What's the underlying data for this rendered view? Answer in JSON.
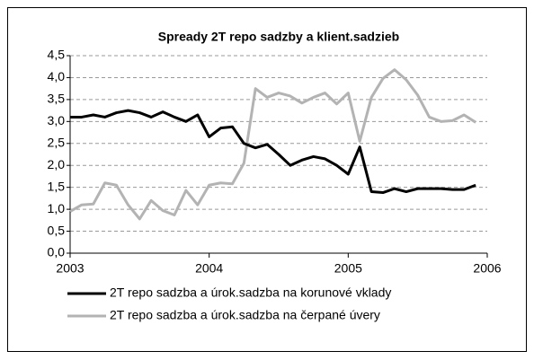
{
  "chart_data": {
    "type": "line",
    "title": "Spready 2T repo sadzby a klient.sadzieb",
    "x": [
      2003,
      2003.083,
      2003.167,
      2003.25,
      2003.333,
      2003.417,
      2003.5,
      2003.583,
      2003.667,
      2003.75,
      2003.833,
      2003.917,
      2004,
      2004.083,
      2004.167,
      2004.25,
      2004.333,
      2004.417,
      2004.5,
      2004.583,
      2004.667,
      2004.75,
      2004.833,
      2004.917,
      2005,
      2005.083,
      2005.167,
      2005.25,
      2005.333,
      2005.417,
      2005.5,
      2005.583,
      2005.667,
      2005.75,
      2005.833,
      2005.917
    ],
    "series": [
      {
        "name": "2T repo sadzba a úrok.sadzba na korunové vklady",
        "color": "#000000",
        "values": [
          3.1,
          3.1,
          3.15,
          3.1,
          3.2,
          3.25,
          3.2,
          3.1,
          3.22,
          3.1,
          3.0,
          3.15,
          2.65,
          2.85,
          2.88,
          2.5,
          2.4,
          2.48,
          2.25,
          2.0,
          2.12,
          2.2,
          2.15,
          2.0,
          1.8,
          2.42,
          1.4,
          1.38,
          1.47,
          1.4,
          1.47,
          1.47,
          1.47,
          1.45,
          1.45,
          1.55
        ]
      },
      {
        "name": "2T repo sadzba a úrok.sadzba na čerpané úvery",
        "color": "#b3b3b3",
        "values": [
          0.95,
          1.1,
          1.12,
          1.6,
          1.55,
          1.1,
          0.78,
          1.2,
          0.97,
          0.87,
          1.43,
          1.1,
          1.55,
          1.6,
          1.58,
          2.05,
          3.75,
          3.55,
          3.65,
          3.58,
          3.42,
          3.55,
          3.65,
          3.4,
          3.65,
          2.55,
          3.55,
          3.98,
          4.18,
          3.95,
          3.6,
          3.1,
          3.0,
          3.02,
          3.15,
          2.98
        ]
      }
    ],
    "xlim": [
      2003,
      2006
    ],
    "xticks": [
      2003,
      2004,
      2005,
      2006
    ],
    "ylim": [
      0,
      4.5
    ],
    "yticks": [
      {
        "value": 0,
        "label": "0,0"
      },
      {
        "value": 0.5,
        "label": "0,5"
      },
      {
        "value": 1,
        "label": "1,0"
      },
      {
        "value": 1.5,
        "label": "1,5"
      },
      {
        "value": 2,
        "label": "2,0"
      },
      {
        "value": 2.5,
        "label": "2,5"
      },
      {
        "value": 3,
        "label": "3,0"
      },
      {
        "value": 3.5,
        "label": "3,5"
      },
      {
        "value": 4,
        "label": "4,0"
      },
      {
        "value": 4.5,
        "label": "4,5"
      }
    ],
    "grid": true,
    "legend": "bottom"
  }
}
